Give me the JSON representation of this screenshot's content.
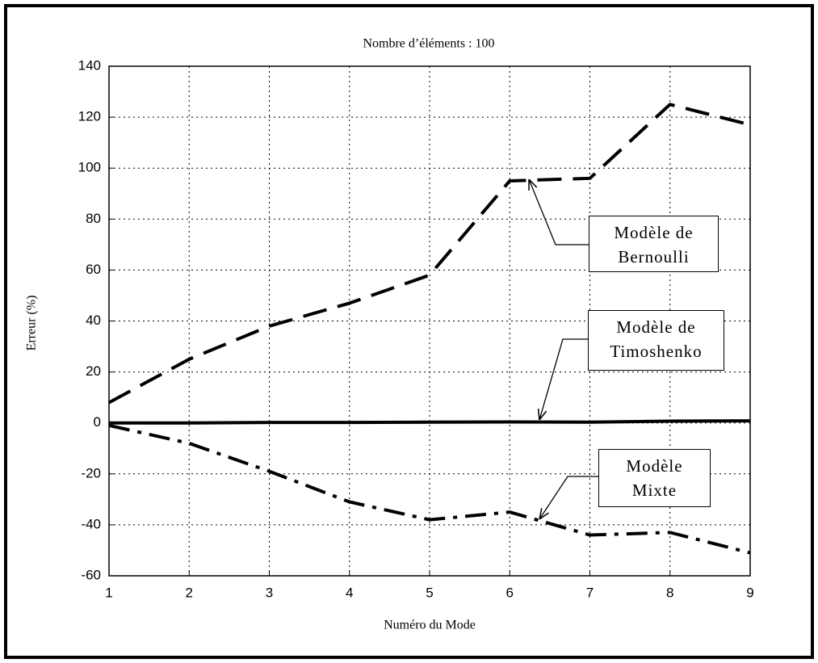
{
  "chart_data": {
    "type": "line",
    "title": "Nombre d’éléments : 100",
    "x_label": "Numéro du Mode",
    "y_label": "Erreur (%)",
    "x": [
      1,
      2,
      3,
      4,
      5,
      6,
      7,
      8,
      9
    ],
    "xlim": [
      1,
      9
    ],
    "xticks": [
      1,
      2,
      3,
      4,
      5,
      6,
      7,
      8,
      9
    ],
    "ylim": [
      -60,
      140
    ],
    "yticks": [
      -60,
      -40,
      -20,
      0,
      20,
      40,
      60,
      80,
      100,
      120,
      140
    ],
    "grid": true,
    "series": [
      {
        "name": "Modèle de Bernoulli",
        "color": "#000000",
        "style": "dashed",
        "values": [
          8,
          25,
          38,
          47,
          58,
          95,
          96,
          125,
          117
        ]
      },
      {
        "name": "Modèle de Timoshenko",
        "color": "#000000",
        "style": "solid",
        "values": [
          0,
          0,
          0.2,
          0.2,
          0.3,
          0.4,
          0.3,
          0.7,
          0.8
        ]
      },
      {
        "name": "Modèle Mixte",
        "color": "#000000",
        "style": "dashdot",
        "values": [
          -1,
          -8,
          -19,
          -31,
          -38,
          -35,
          -44,
          -43,
          -51
        ]
      }
    ]
  }
}
